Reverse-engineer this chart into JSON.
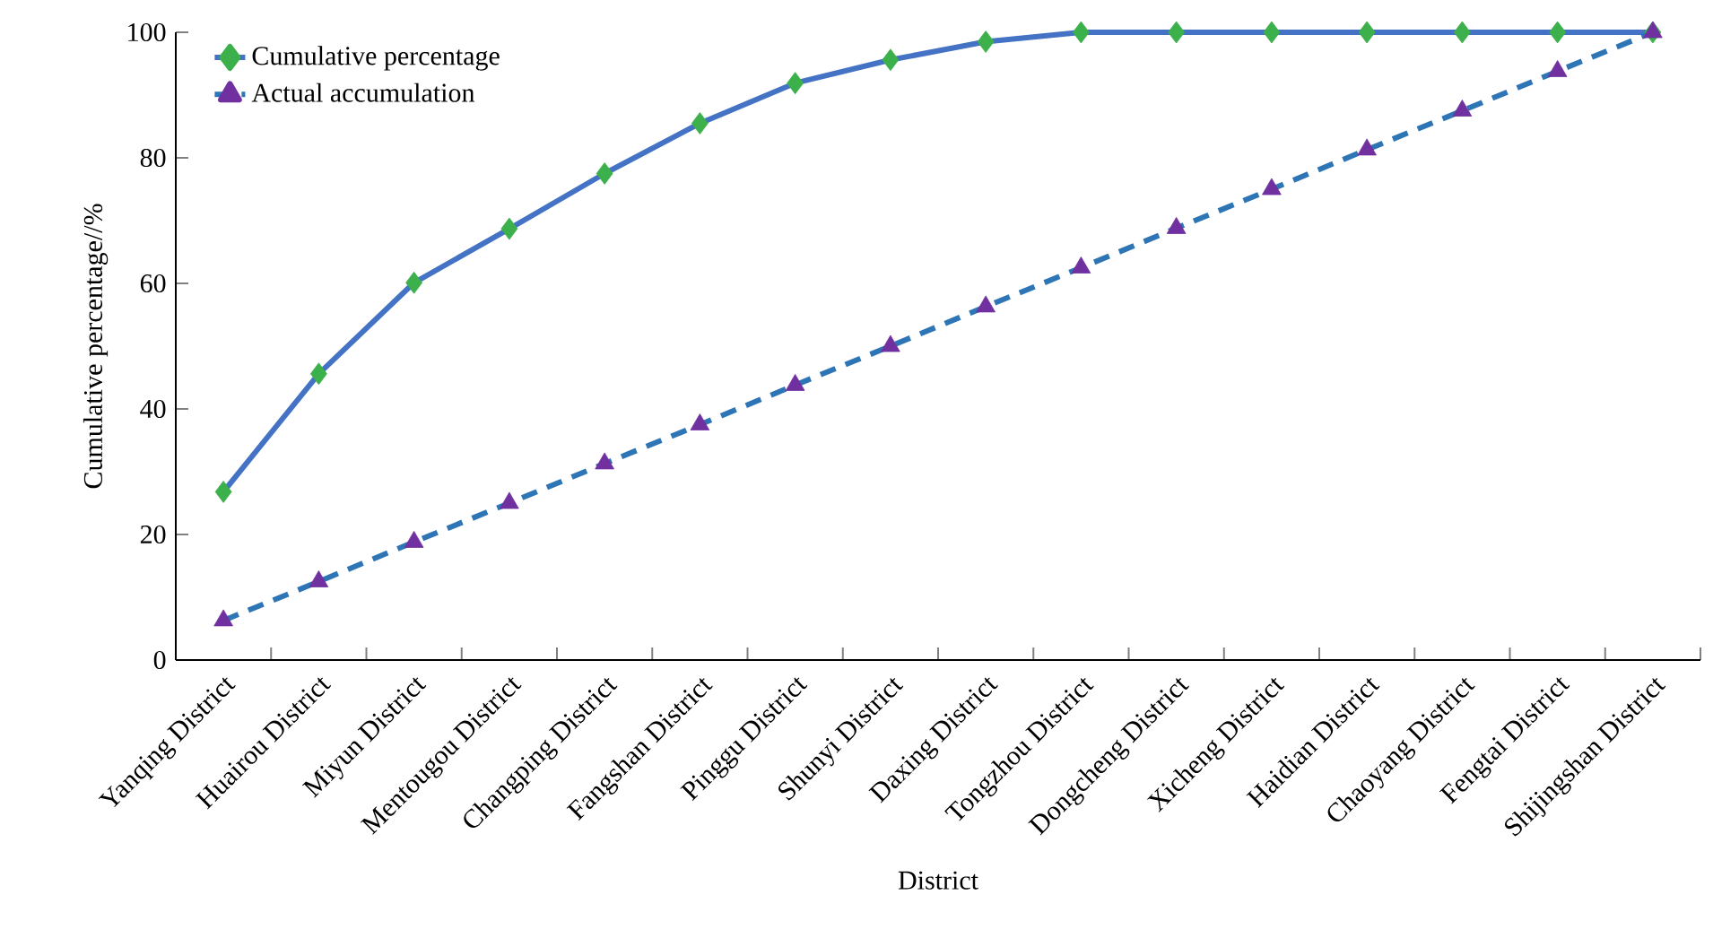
{
  "chart_data": {
    "type": "line",
    "xlabel": "District",
    "ylabel": "Cumulative percentage//%",
    "categories": [
      "Yanqing District",
      "Huairou District",
      "Miyun District",
      "Mentougou District",
      "Changping District",
      "Fangshan District",
      "Pinggu District",
      "Shunyi District",
      "Daxing District",
      "Tongzhou District",
      "Dongcheng District",
      "Xicheng District",
      "Haidian District",
      "Chaoyang District",
      "Fengtai District",
      "Shijingshan District"
    ],
    "series": [
      {
        "name": "Cumulative percentage",
        "color": "#4472c4",
        "marker": "diamond",
        "colors": [
          "#3cb04b",
          "#3cb04b",
          "#3cb04b",
          "#3cb04b",
          "#3cb04b",
          "#3cb04b",
          "#3cb04b",
          "#3cb04b",
          "#3cb04b",
          "#3cb04b",
          "#3cb04b",
          "#3cb04b",
          "#3cb04b",
          "#3cb04b",
          "#3cb04b",
          "#3cb04b"
        ],
        "line_style": "solid",
        "values": [
          26.8,
          45.6,
          60.1,
          68.7,
          77.5,
          85.5,
          91.9,
          95.6,
          98.5,
          100,
          100,
          100,
          100,
          100,
          100,
          100
        ]
      },
      {
        "name": "Actual accumulation",
        "color": "#2e75b6",
        "marker": "triangle",
        "colors": [
          "#7030a0",
          "#7030a0",
          "#7030a0",
          "#7030a0",
          "#7030a0",
          "#7030a0",
          "#7030a0",
          "#7030a0",
          "#7030a0",
          "#7030a0",
          "#7030a0",
          "#7030a0",
          "#7030a0",
          "#7030a0",
          "#7030a0",
          "#7030a0"
        ],
        "line_style": "dashed",
        "values": [
          6.3,
          12.5,
          18.8,
          25,
          31.3,
          37.5,
          43.8,
          50,
          56.3,
          62.5,
          68.8,
          75,
          81.3,
          87.5,
          93.8,
          100
        ]
      }
    ],
    "ylim": [
      0,
      100
    ],
    "yticks": [
      0,
      20,
      40,
      60,
      80,
      100
    ],
    "grid": false,
    "legend": "top left"
  }
}
